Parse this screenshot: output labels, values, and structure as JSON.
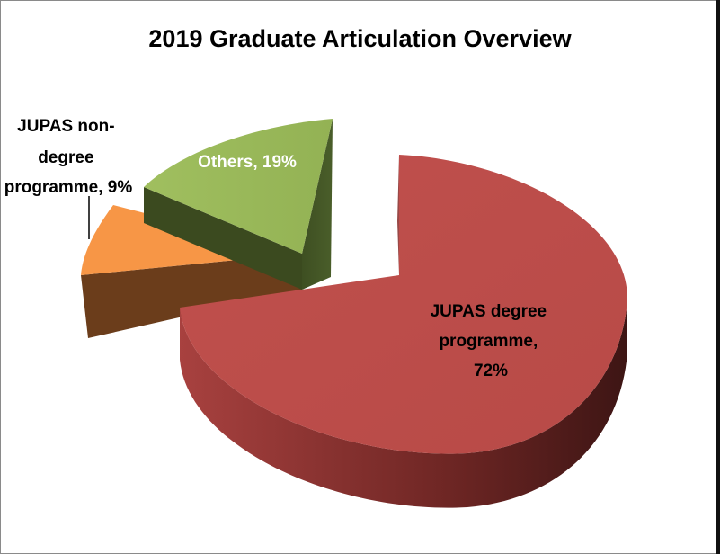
{
  "chart_data": {
    "type": "pie",
    "title": "2019 Graduate Articulation Overview",
    "slices": [
      {
        "label": "JUPAS degree programme",
        "value": 72,
        "data_label": "JUPAS degree programme, 72%",
        "color": "#C0504D"
      },
      {
        "label": "JUPAS non-degree programme",
        "value": 9,
        "data_label": "JUPAS non-degree programme, 9%",
        "color": "#F79646"
      },
      {
        "label": "Others",
        "value": 19,
        "data_label": "Others, 19%",
        "color": "#9BBB59"
      }
    ],
    "labels_text": {
      "degree": [
        "JUPAS degree",
        "programme,",
        "72%"
      ],
      "nondegree": [
        "JUPAS non-",
        "degree",
        "programme, 9%"
      ],
      "others": [
        "Others, 19%"
      ]
    },
    "legend": "none",
    "style": "3d-exploded"
  }
}
